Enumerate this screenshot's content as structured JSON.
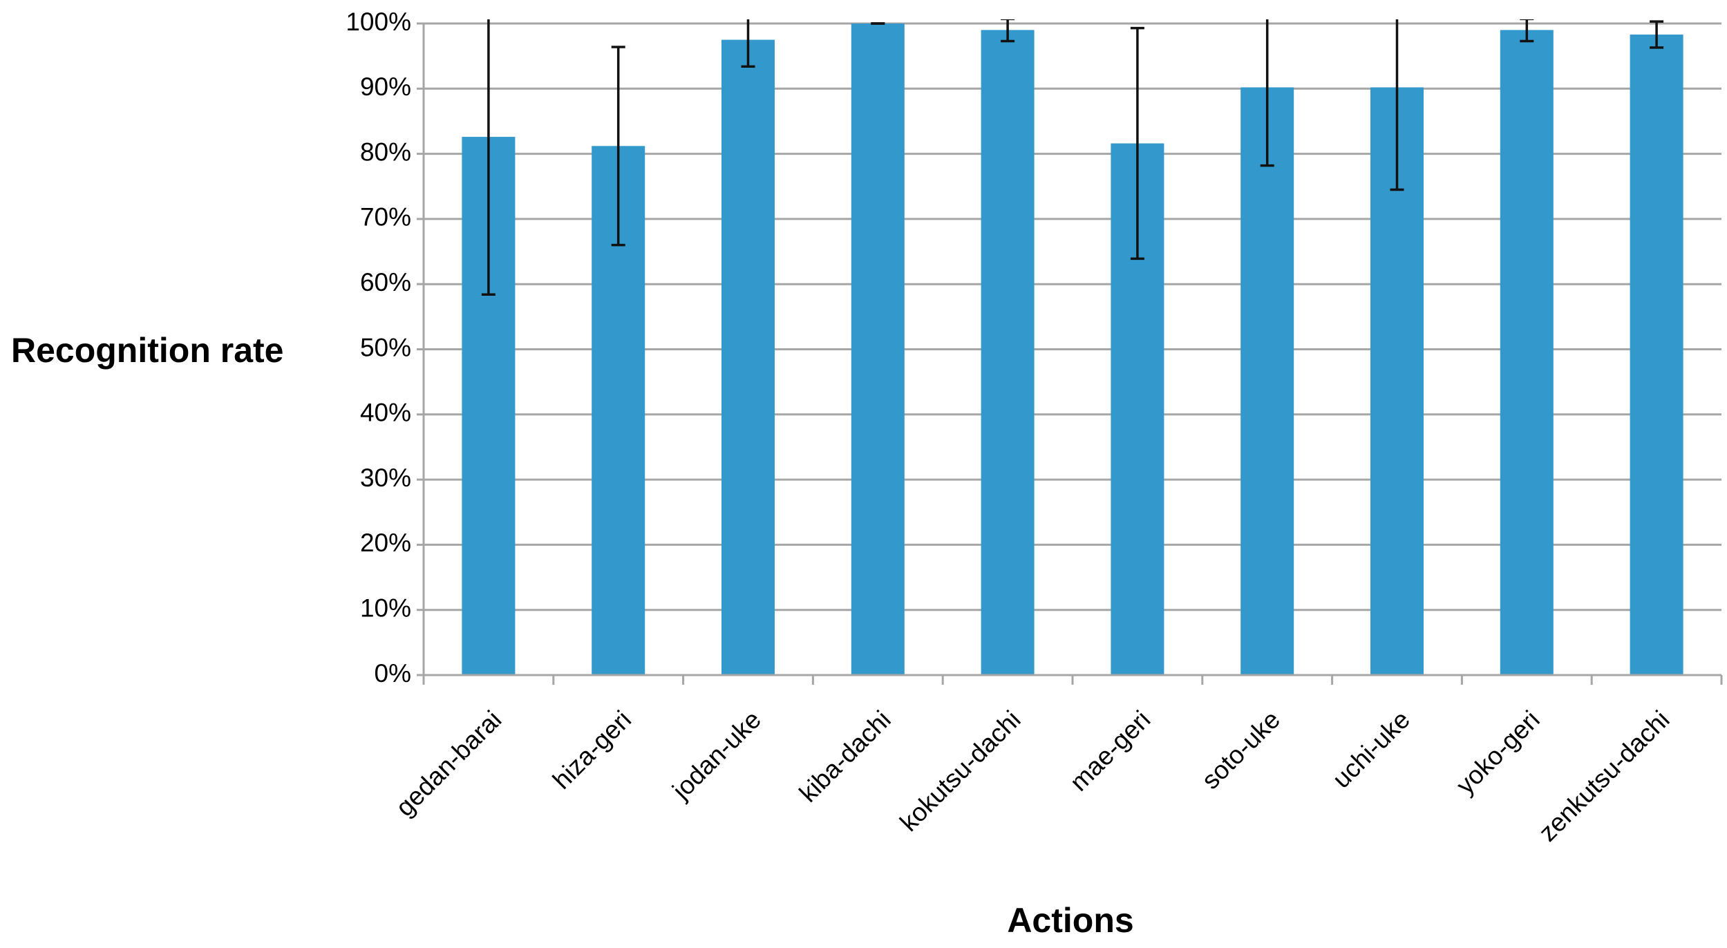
{
  "chart_data": {
    "type": "bar",
    "categories": [
      "gedan-barai",
      "hiza-geri",
      "jodan-uke",
      "kiba-dachi",
      "kokutsu-dachi",
      "mae-geri",
      "soto-uke",
      "uchi-uke",
      "yoko-geri",
      "zenkutsu-dachi"
    ],
    "values": [
      82.6,
      81.2,
      97.5,
      100,
      99.0,
      81.6,
      90.2,
      90.2,
      99.0,
      98.3
    ],
    "errors": [
      24.2,
      15.2,
      4.1,
      0,
      1.7,
      17.7,
      12.0,
      15.7,
      1.7,
      2.0
    ],
    "color": "#3399cc",
    "x_label": "Actions",
    "y_label": "Recognition rate",
    "ylim": [
      0,
      100
    ],
    "yticks": [
      {
        "value": 0,
        "label": "0%"
      },
      {
        "value": 10,
        "label": "10%"
      },
      {
        "value": 20,
        "label": "20%"
      },
      {
        "value": 30,
        "label": "30%"
      },
      {
        "value": 40,
        "label": "40%"
      },
      {
        "value": 50,
        "label": "50%"
      },
      {
        "value": 60,
        "label": "60%"
      },
      {
        "value": 70,
        "label": "70%"
      },
      {
        "value": 80,
        "label": "80%"
      },
      {
        "value": 90,
        "label": "90%"
      },
      {
        "value": 100,
        "label": "100%"
      }
    ],
    "grid": true
  }
}
